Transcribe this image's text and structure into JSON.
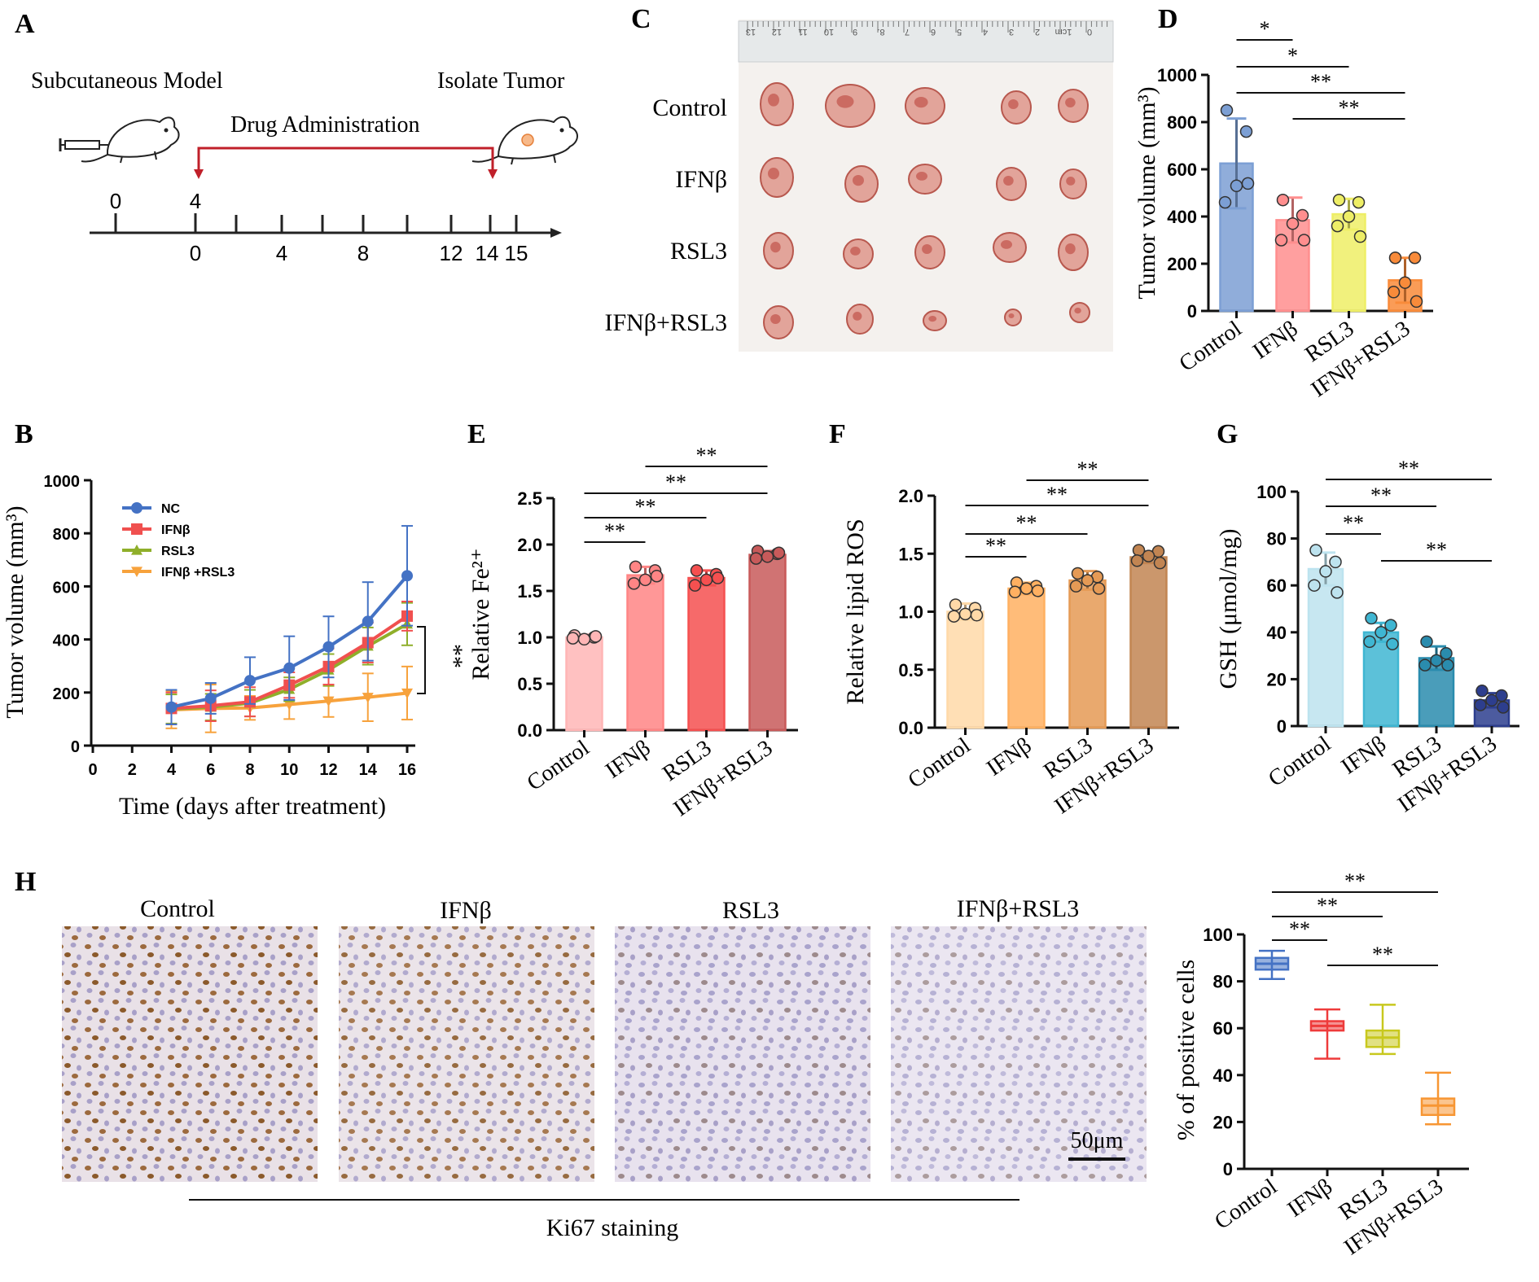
{
  "colors": {
    "nc": "#4472C4",
    "ifnb_line": "#F0504F",
    "rsl3_line": "#8FAF2A",
    "combo_line": "#F7A23C",
    "d": [
      "#7C9FD4",
      "#FF8E8E",
      "#EEEE66",
      "#F98B3A"
    ],
    "e": [
      "#FFB6B6",
      "#FF8585",
      "#F55050",
      "#C85A5A"
    ],
    "f": [
      "#FFD9A8",
      "#FFB061",
      "#E59A55",
      "#C28552"
    ],
    "g": [
      "#BDE3EF",
      "#3FB6D2",
      "#2A8CAE",
      "#2D3E8E"
    ],
    "h": [
      "#4472C4",
      "#EE3B3B",
      "#C8C81E",
      "#F79633"
    ]
  },
  "panelA": {
    "label": "A",
    "left_title": "Subcutaneous Model",
    "right_title": "Isolate Tumor",
    "drug_label": "Drug Administration",
    "top_ticks": [
      "0",
      "4"
    ],
    "bottom_ticks": [
      "0",
      "4",
      "8",
      "12",
      "14",
      "15"
    ],
    "syringe_icon": "syringe-icon",
    "mouse_icon": "mouse-icon"
  },
  "panelB": {
    "label": "B",
    "legend": [
      "NC",
      "IFNβ",
      "RSL3",
      "IFNβ +RSL3"
    ],
    "sig": "**"
  },
  "panelC": {
    "label": "C",
    "rows": [
      "Control",
      "IFNβ",
      "RSL3",
      "IFNβ+RSL3"
    ],
    "ruler_marks": [
      "13",
      "12",
      "11",
      "10",
      "9",
      "8.",
      "7",
      "6",
      "5",
      "4",
      "3",
      "2",
      "1cm",
      "0"
    ]
  },
  "panelD": {
    "label": "D"
  },
  "panelE": {
    "label": "E"
  },
  "panelF": {
    "label": "F"
  },
  "panelG": {
    "label": "G"
  },
  "panelH": {
    "label": "H",
    "image_titles": [
      "Control",
      "IFNβ",
      "RSL3",
      "IFNβ+RSL3"
    ],
    "scale_bar": "50μm",
    "stain_label": "Ki67 staining"
  },
  "chart_data": [
    {
      "id": "B",
      "type": "line",
      "title": "",
      "xlabel": "Time (days after treatment)",
      "ylabel": "Tumor volume (mm³)",
      "xlim": [
        0,
        16
      ],
      "ylim": [
        0,
        1000
      ],
      "xticks": [
        0,
        2,
        4,
        6,
        8,
        10,
        12,
        14,
        16
      ],
      "yticks": [
        0,
        200,
        400,
        600,
        800,
        1000
      ],
      "x": [
        4,
        6,
        8,
        10,
        12,
        14,
        16
      ],
      "series": [
        {
          "name": "NC",
          "values": [
            145,
            178,
            245,
            292,
            372,
            468,
            640
          ],
          "err": [
            65,
            58,
            88,
            120,
            115,
            148,
            188
          ]
        },
        {
          "name": "IFNβ",
          "values": [
            140,
            150,
            165,
            228,
            298,
            388,
            488
          ],
          "err": [
            60,
            58,
            55,
            48,
            68,
            75,
            55
          ]
        },
        {
          "name": "RSL3",
          "values": [
            138,
            145,
            160,
            212,
            285,
            375,
            458
          ],
          "err": [
            55,
            50,
            50,
            45,
            60,
            70,
            80
          ]
        },
        {
          "name": "IFNβ +RSL3",
          "values": [
            135,
            140,
            142,
            155,
            168,
            182,
            198
          ],
          "err": [
            70,
            90,
            45,
            55,
            60,
            90,
            100
          ]
        }
      ],
      "significance": "**"
    },
    {
      "id": "D",
      "type": "bar",
      "ylabel": "Tumor volume (mm³)",
      "categories": [
        "Control",
        "IFNβ",
        "RSL3",
        "IFNβ+RSL3"
      ],
      "values": [
        625,
        385,
        410,
        130
      ],
      "err": [
        190,
        95,
        65,
        95
      ],
      "points": [
        [
          850,
          760,
          530,
          460,
          540
        ],
        [
          470,
          405,
          370,
          300,
          300
        ],
        [
          470,
          460,
          400,
          360,
          315
        ],
        [
          225,
          225,
          120,
          80,
          40
        ]
      ],
      "ylim": [
        0,
        1000
      ],
      "yticks": [
        0,
        200,
        400,
        600,
        800,
        1000
      ],
      "comparisons": [
        {
          "a": 0,
          "b": 1,
          "label": "*"
        },
        {
          "a": 0,
          "b": 2,
          "label": "*"
        },
        {
          "a": 0,
          "b": 3,
          "label": "**"
        },
        {
          "a": 1,
          "b": 3,
          "label": "**"
        }
      ]
    },
    {
      "id": "E",
      "type": "bar",
      "ylabel": "Relative Fe²⁺",
      "categories": [
        "Control",
        "IFNβ",
        "RSL3",
        "IFNβ+RSL3"
      ],
      "values": [
        1.0,
        1.67,
        1.64,
        1.89
      ],
      "err": [
        0.03,
        0.09,
        0.08,
        0.04
      ],
      "points": [
        [
          1.02,
          1.0,
          0.98,
          0.99,
          1.01
        ],
        [
          1.76,
          1.72,
          1.62,
          1.58,
          1.66
        ],
        [
          1.72,
          1.68,
          1.62,
          1.56,
          1.64
        ],
        [
          1.93,
          1.9,
          1.87,
          1.85,
          1.91
        ]
      ],
      "ylim": [
        0,
        2.5
      ],
      "yticks": [
        0.0,
        0.5,
        1.0,
        1.5,
        2.0,
        2.5
      ],
      "comparisons": [
        {
          "a": 0,
          "b": 1,
          "label": "**"
        },
        {
          "a": 0,
          "b": 2,
          "label": "**"
        },
        {
          "a": 0,
          "b": 3,
          "label": "**"
        },
        {
          "a": 1,
          "b": 3,
          "label": "**"
        }
      ]
    },
    {
      "id": "F",
      "type": "bar",
      "ylabel": "Relative lipid ROS",
      "categories": [
        "Control",
        "IFNβ",
        "RSL3",
        "IFNβ+RSL3"
      ],
      "values": [
        1.0,
        1.2,
        1.27,
        1.47
      ],
      "err": [
        0.07,
        0.05,
        0.08,
        0.05
      ],
      "points": [
        [
          1.06,
          1.03,
          0.98,
          0.96,
          0.97
        ],
        [
          1.25,
          1.22,
          1.2,
          1.17,
          1.18
        ],
        [
          1.33,
          1.3,
          1.27,
          1.22,
          1.2
        ],
        [
          1.53,
          1.52,
          1.48,
          1.44,
          1.42
        ]
      ],
      "ylim": [
        0,
        2.0
      ],
      "yticks": [
        0.0,
        0.5,
        1.0,
        1.5,
        2.0
      ],
      "comparisons": [
        {
          "a": 0,
          "b": 1,
          "label": "**"
        },
        {
          "a": 0,
          "b": 2,
          "label": "**"
        },
        {
          "a": 0,
          "b": 3,
          "label": "**"
        },
        {
          "a": 1,
          "b": 3,
          "label": "**"
        }
      ]
    },
    {
      "id": "G",
      "type": "bar",
      "ylabel": "GSH (μmol/mg)",
      "categories": [
        "Control",
        "IFNβ",
        "RSL3",
        "IFNβ+RSL3"
      ],
      "values": [
        67,
        40,
        29,
        11
      ],
      "err": [
        7,
        4,
        5,
        3
      ],
      "points": [
        [
          75,
          70,
          66,
          60,
          57
        ],
        [
          46,
          43,
          40,
          36,
          35
        ],
        [
          36,
          31,
          28,
          26,
          26
        ],
        [
          15,
          13,
          11,
          9,
          8
        ]
      ],
      "ylim": [
        0,
        100
      ],
      "yticks": [
        0,
        20,
        40,
        60,
        80,
        100
      ],
      "comparisons": [
        {
          "a": 0,
          "b": 1,
          "label": "**"
        },
        {
          "a": 0,
          "b": 2,
          "label": "**"
        },
        {
          "a": 0,
          "b": 3,
          "label": "**"
        },
        {
          "a": 1,
          "b": 3,
          "label": "**"
        }
      ]
    },
    {
      "id": "H",
      "type": "box",
      "ylabel": "% of positive cells",
      "categories": [
        "Control",
        "IFNβ",
        "RSL3",
        "IFNβ+RSL3"
      ],
      "boxes": [
        {
          "min": 81,
          "q1": 85,
          "median": 87.5,
          "q3": 90,
          "max": 93
        },
        {
          "min": 47,
          "q1": 59,
          "median": 61,
          "q3": 63,
          "max": 68
        },
        {
          "min": 49,
          "q1": 52,
          "median": 56,
          "q3": 59,
          "max": 70
        },
        {
          "min": 19,
          "q1": 23,
          "median": 27,
          "q3": 30,
          "max": 41
        }
      ],
      "ylim": [
        0,
        100
      ],
      "yticks": [
        0,
        20,
        40,
        60,
        80,
        100
      ],
      "comparisons": [
        {
          "a": 0,
          "b": 1,
          "label": "**"
        },
        {
          "a": 0,
          "b": 2,
          "label": "**"
        },
        {
          "a": 0,
          "b": 3,
          "label": "**"
        },
        {
          "a": 1,
          "b": 3,
          "label": "**"
        }
      ]
    }
  ]
}
